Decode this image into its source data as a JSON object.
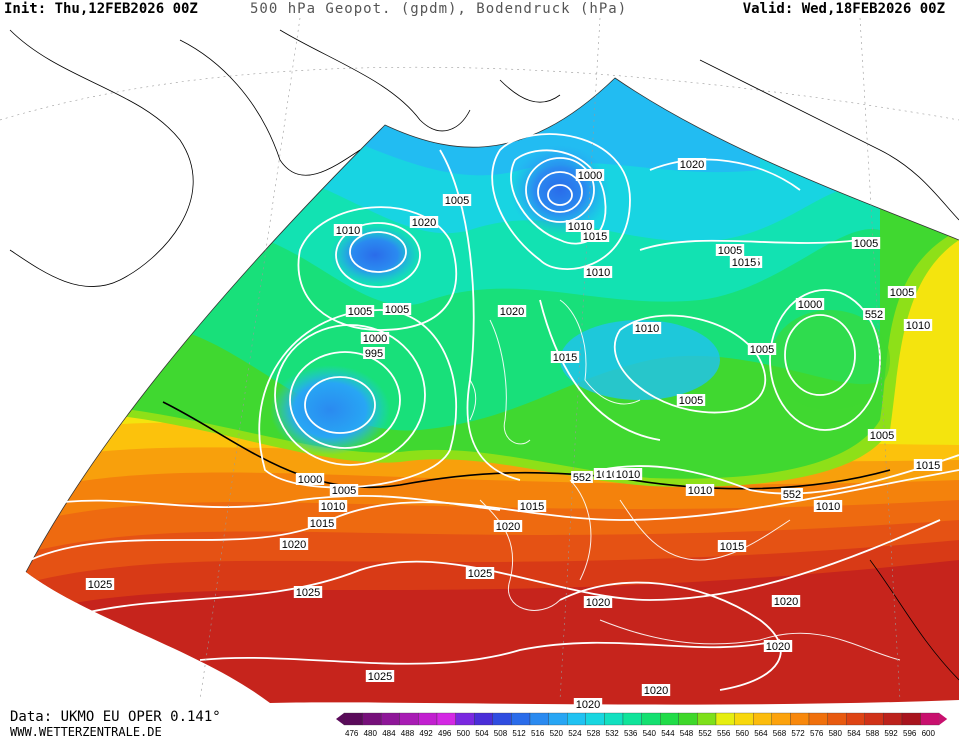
{
  "header": {
    "init": "Init: Thu,12FEB2026 00Z",
    "title": "500 hPa Geopot. (gpdm), Bodendruck (hPa)",
    "valid": "Valid: Wed,18FEB2026 00Z"
  },
  "footer": {
    "source": "Data: UKMO EU OPER 0.141°",
    "site": "WWW.WETTERZENTRALE.DE"
  },
  "colorscale": {
    "values": [
      "476",
      "480",
      "484",
      "488",
      "492",
      "496",
      "500",
      "504",
      "508",
      "512",
      "516",
      "520",
      "524",
      "528",
      "532",
      "536",
      "540",
      "544",
      "548",
      "552",
      "556",
      "560",
      "564",
      "568",
      "572",
      "576",
      "580",
      "584",
      "588",
      "592",
      "596",
      "600"
    ],
    "colors": [
      "#5a0a5a",
      "#76107a",
      "#8e1698",
      "#a81cb4",
      "#c21fd0",
      "#d428e4",
      "#7a28e0",
      "#4a2ed8",
      "#2f4de0",
      "#2a6cea",
      "#2a8af0",
      "#28a6f4",
      "#20c2f2",
      "#18d6e0",
      "#12e0c0",
      "#10e49a",
      "#14e070",
      "#20dc48",
      "#3ed82a",
      "#7ee01a",
      "#e6ee10",
      "#f8d80c",
      "#fcbc0c",
      "#fca20c",
      "#f8880c",
      "#f0700c",
      "#e85a10",
      "#de4414",
      "#d03218",
      "#bc221c",
      "#a8141e",
      "#c8106e"
    ]
  },
  "isobar_labels": [
    {
      "text": "1000"
    },
    {
      "text": "1005"
    },
    {
      "text": "1010"
    },
    {
      "text": "1015"
    },
    {
      "text": "1020"
    },
    {
      "text": "1025"
    },
    {
      "text": "995"
    }
  ],
  "map_labels": [
    "1020",
    "1000",
    "1005",
    "1010",
    "1015",
    "1020",
    "1010",
    "1015",
    "1010",
    "1005",
    "1005",
    "1005",
    "1020",
    "1000",
    "1005",
    "1000",
    "995",
    "1005",
    "1010",
    "552",
    "1015",
    "1005",
    "1000",
    "1005",
    "1015",
    "1005",
    "1010",
    "552",
    "1015",
    "1015",
    "1010",
    "1010",
    "1005",
    "1010",
    "552",
    "1015",
    "1015",
    "1020",
    "1020",
    "1025",
    "1025",
    "1025",
    "1020",
    "1020",
    "1020",
    "1025",
    "1020",
    "1020",
    "1015",
    "1015",
    "1010"
  ]
}
